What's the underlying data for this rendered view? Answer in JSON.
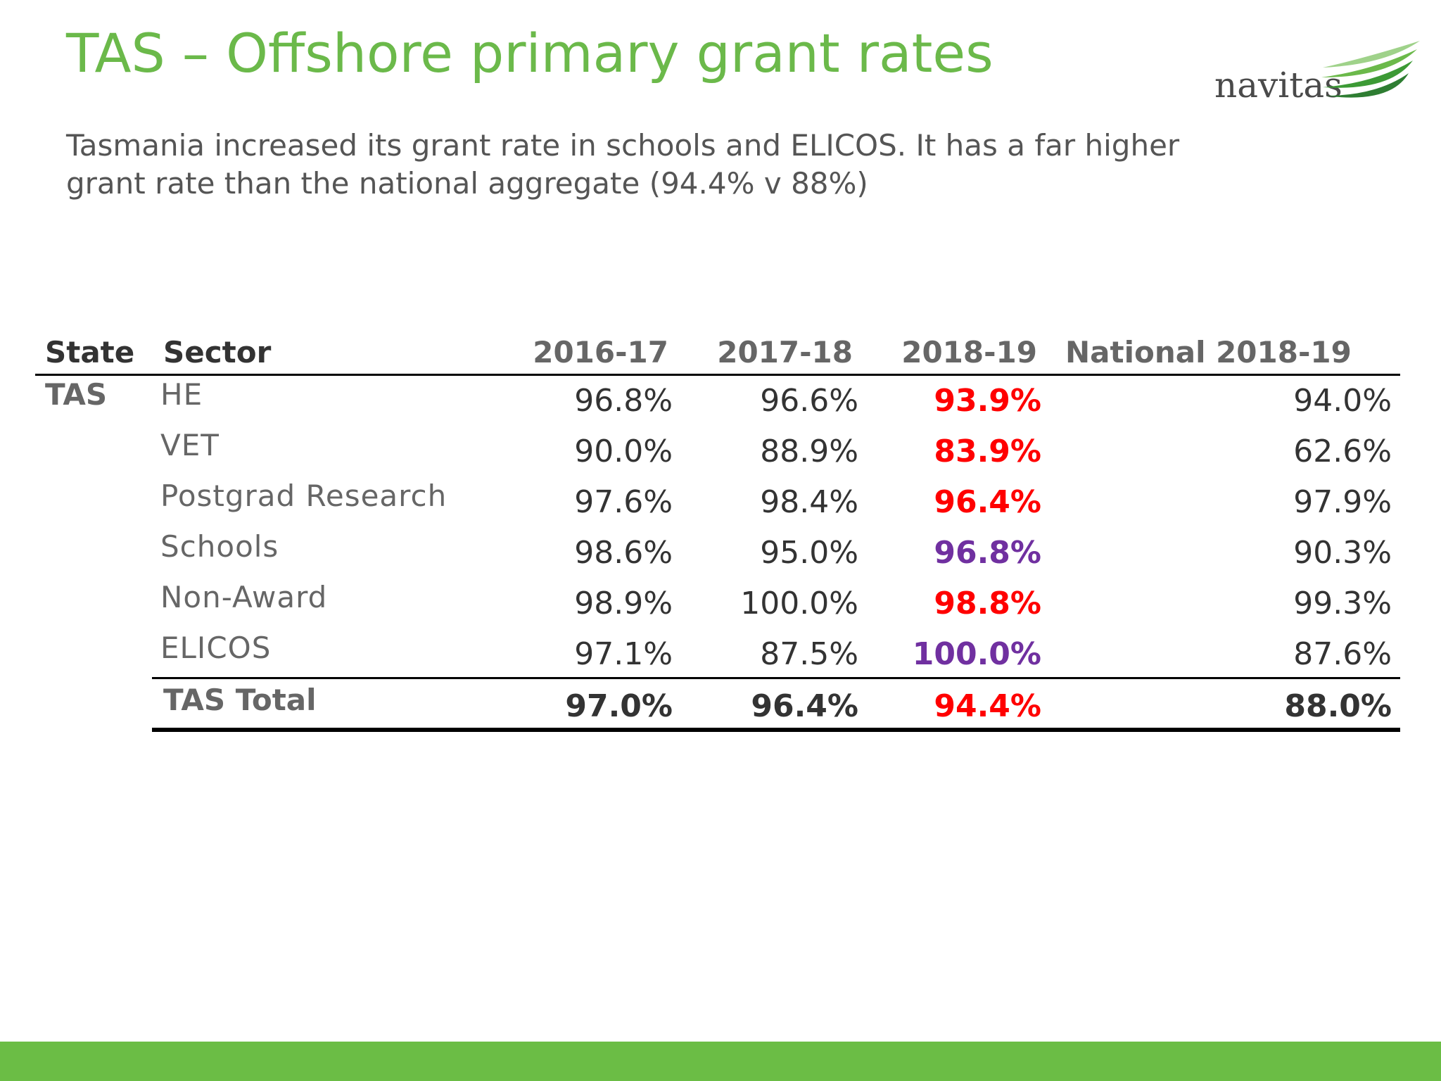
{
  "slide": {
    "title": "TAS – Offshore primary grant rates",
    "subtitle_lines": [
      "Tasmania increased its grant rate in schools and ELICOS. It has a far higher",
      "grant rate than the national aggregate (94.4% v 88%)"
    ]
  },
  "logo": {
    "text": "navitas",
    "icon": "navitas-swoosh-icon",
    "color": "#6bb94a"
  },
  "table": {
    "headers": {
      "state": "State",
      "sector": "Sector",
      "y1": "2016-17",
      "y2": "2017-18",
      "y3": "2018-19",
      "national": "National 2018-19"
    },
    "state": "TAS",
    "rows": [
      {
        "sector": "HE",
        "y1": "96.8%",
        "y2": "96.6%",
        "y3": "93.9%",
        "national": "94.0%",
        "y3_color": "red"
      },
      {
        "sector": "VET",
        "y1": "90.0%",
        "y2": "88.9%",
        "y3": "83.9%",
        "national": "62.6%",
        "y3_color": "red"
      },
      {
        "sector": "Postgrad Research",
        "y1": "97.6%",
        "y2": "98.4%",
        "y3": "96.4%",
        "national": "97.9%",
        "y3_color": "red"
      },
      {
        "sector": "Schools",
        "y1": "98.6%",
        "y2": "95.0%",
        "y3": "96.8%",
        "national": "90.3%",
        "y3_color": "purple"
      },
      {
        "sector": "Non-Award",
        "y1": "98.9%",
        "y2": "100.0%",
        "y3": "98.8%",
        "national": "99.3%",
        "y3_color": "red"
      },
      {
        "sector": "ELICOS",
        "y1": "97.1%",
        "y2": "87.5%",
        "y3": "100.0%",
        "national": "87.6%",
        "y3_color": "purple"
      }
    ],
    "total": {
      "label": "TAS Total",
      "y1": "97.0%",
      "y2": "96.4%",
      "y3": "94.4%",
      "national": "88.0%",
      "y3_color": "red"
    }
  },
  "colors": {
    "title": "#6bb94a",
    "footer": "#6bbd45",
    "red": "#ff0000",
    "purple": "#7030a0"
  }
}
